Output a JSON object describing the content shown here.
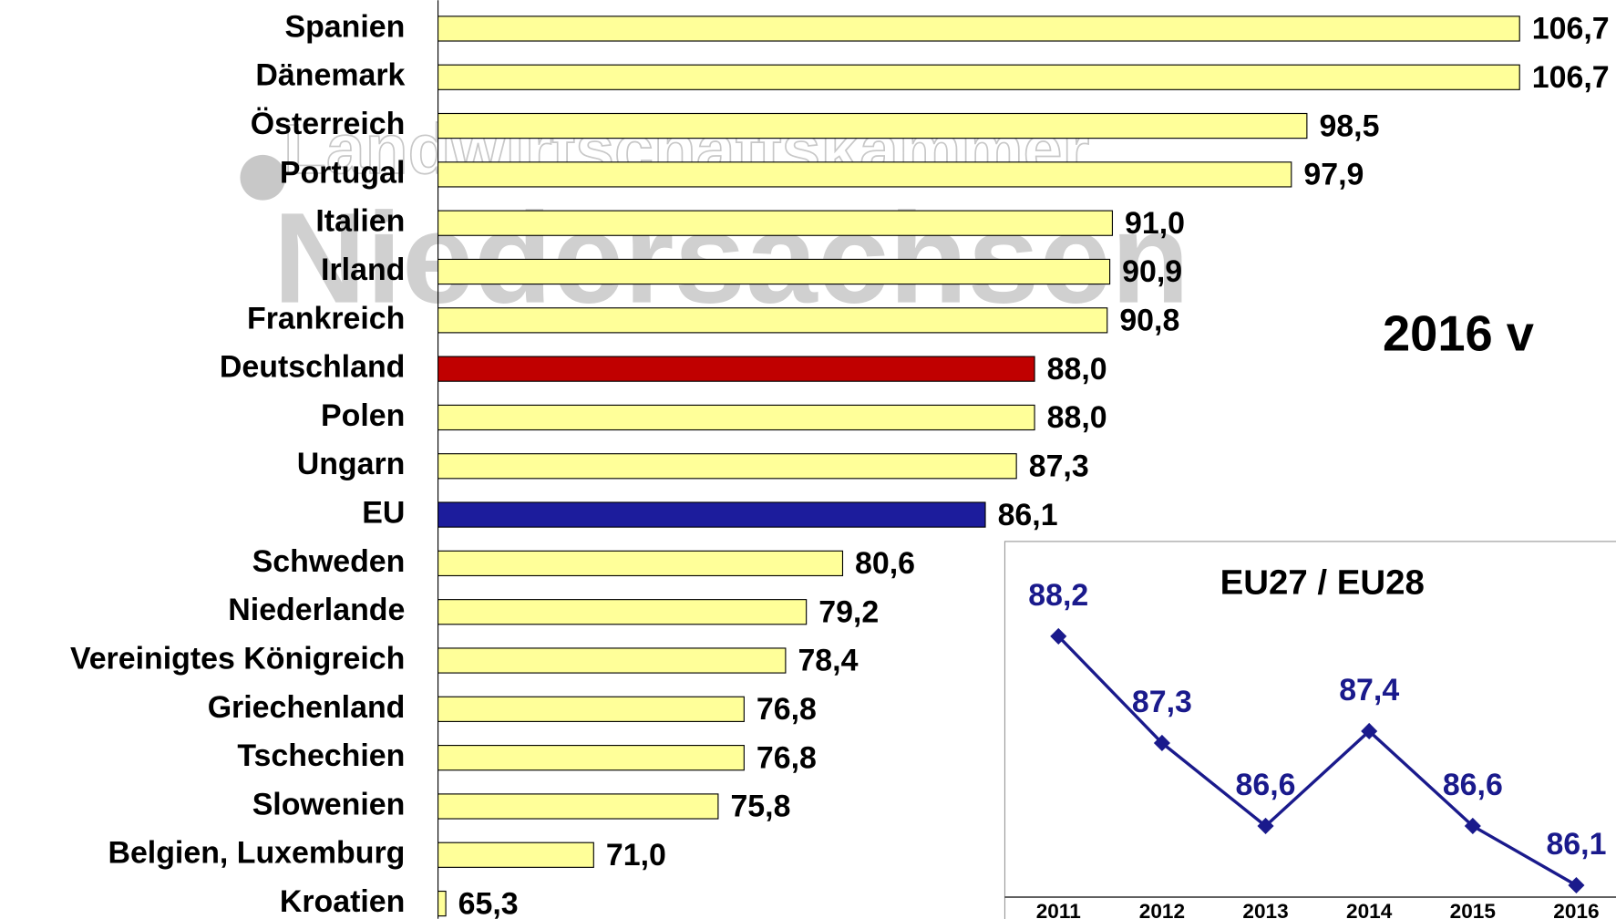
{
  "watermark": [
    "Landwirtschaftskammer",
    "Niedersachsen"
  ],
  "chart_data": [
    {
      "type": "barh",
      "annotation": "2016 v",
      "categories": [
        "Spanien",
        "Dänemark",
        "Österreich",
        "Portugal",
        "Italien",
        "Irland",
        "Frankreich",
        "Deutschland",
        "Polen",
        "Ungarn",
        "EU",
        "Schweden",
        "Niederlande",
        "Vereinigtes Königreich",
        "Griechenland",
        "Tschechien",
        "Slowenien",
        "Belgien, Luxemburg",
        "Kroatien"
      ],
      "values": [
        106.7,
        106.7,
        98.5,
        97.9,
        91.0,
        90.9,
        90.8,
        88.0,
        88.0,
        87.3,
        86.1,
        80.6,
        79.2,
        78.4,
        76.8,
        76.8,
        75.8,
        71.0,
        65.3
      ],
      "value_labels": [
        "106,7",
        "106,7",
        "98,5",
        "97,9",
        "91,0",
        "90,9",
        "90,8",
        "88,0",
        "88,0",
        "87,3",
        "86,1",
        "80,6",
        "79,2",
        "78,4",
        "76,8",
        "76,8",
        "75,8",
        "71,0",
        "65,3"
      ],
      "colors": [
        "#ffff99",
        "#ffff99",
        "#ffff99",
        "#ffff99",
        "#ffff99",
        "#ffff99",
        "#ffff99",
        "#c00000",
        "#ffff99",
        "#ffff99",
        "#1c1c9c",
        "#ffff99",
        "#ffff99",
        "#ffff99",
        "#ffff99",
        "#ffff99",
        "#ffff99",
        "#ffff99",
        "#ffff99"
      ],
      "xlim": [
        65,
        107
      ]
    },
    {
      "type": "line",
      "title": "EU27 / EU28",
      "categories": [
        "2011",
        "2012",
        "2013",
        "2014",
        "2015",
        "2016"
      ],
      "values": [
        88.2,
        87.3,
        86.6,
        87.4,
        86.6,
        86.1
      ],
      "value_labels": [
        "88,2",
        "87,3",
        "86,6",
        "87,4",
        "86,6",
        "86,1"
      ],
      "color": "#1a1a8c",
      "ylim": [
        86,
        89
      ]
    }
  ]
}
